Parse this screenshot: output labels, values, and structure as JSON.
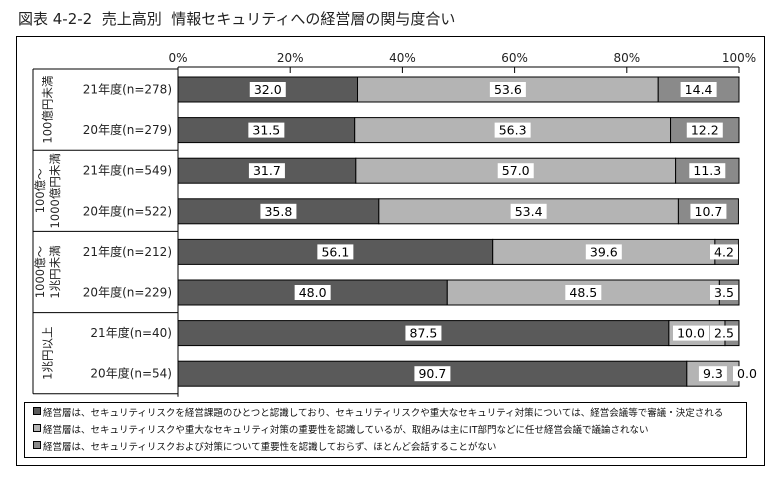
{
  "chart_data": {
    "type": "bar",
    "orientation": "horizontal",
    "stacked": true,
    "title": "図表 4-2-2  売上高別  情報セキュリティへの経営層の関与度合い",
    "xlim": [
      0,
      100
    ],
    "x_ticks": [
      "0%",
      "20%",
      "40%",
      "60%",
      "80%",
      "100%"
    ],
    "groups": [
      {
        "label": "100億円未満",
        "rows": [
          "21年度(n=278)",
          "20年度(n=279)"
        ]
      },
      {
        "label": "100億～\n1000億円未満",
        "rows": [
          "21年度(n=549)",
          "20年度(n=522)"
        ]
      },
      {
        "label": "1000億～\n1兆円未満",
        "rows": [
          "21年度(n=212)",
          "20年度(n=229)"
        ]
      },
      {
        "label": "1兆円以上",
        "rows": [
          "21年度(n=40)",
          "20年度(n=54)"
        ]
      }
    ],
    "categories": [
      "21年度(n=278)",
      "20年度(n=279)",
      "21年度(n=549)",
      "20年度(n=522)",
      "21年度(n=212)",
      "20年度(n=229)",
      "21年度(n=40)",
      "20年度(n=54)"
    ],
    "series": [
      {
        "name": "経営層は、セキュリティリスクを経営課題のひとつと認識しており、セキュリティリスクや重大なセキュリティ対策については、経営会議等で審議・決定される",
        "color": "#5a5a5a",
        "values": [
          32.0,
          31.5,
          31.7,
          35.8,
          56.1,
          48.0,
          87.5,
          90.7
        ]
      },
      {
        "name": "経営層は、セキュリティリスクや重大なセキュリティ対策の重要性を認識しているが、取組みは主にIT部門などに任せ経営会議で議論されない",
        "color": "#b4b4b4",
        "values": [
          53.6,
          56.3,
          57.0,
          53.4,
          39.6,
          48.5,
          10.0,
          9.3
        ]
      },
      {
        "name": "経営層は、セキュリティリスクおよび対策について重要性を認識しておらず、ほとんど会話することがない",
        "color": "#8a8a8a",
        "values": [
          14.4,
          12.2,
          11.3,
          10.7,
          4.2,
          3.5,
          2.5,
          0.0
        ]
      }
    ],
    "legend_position": "bottom"
  }
}
